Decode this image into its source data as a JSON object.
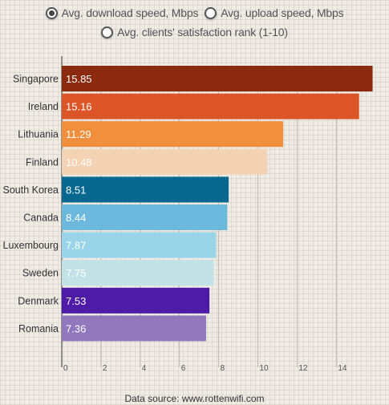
{
  "controls": {
    "radio_download": "Avg. download speed, Mbps",
    "radio_upload": "Avg. upload speed, Mbps",
    "radio_rank": "Avg. clients' satisfaction rank (1-10)",
    "selected": "download"
  },
  "source": "Data source: www.rottenwifi.com",
  "chart_data": {
    "type": "bar",
    "orientation": "horizontal",
    "categories": [
      "Singapore",
      "Ireland",
      "Lithuania",
      "Finland",
      "South Korea",
      "Canada",
      "Luxembourg",
      "Sweden",
      "Denmark",
      "Romania"
    ],
    "values": [
      15.85,
      15.16,
      11.29,
      10.48,
      8.51,
      8.44,
      7.87,
      7.75,
      7.53,
      7.36
    ],
    "value_labels": [
      "15.85",
      "15.16",
      "11.29",
      "10.48",
      "8.51",
      "8.44",
      "7.87",
      "7.75",
      "7.53",
      "7.36"
    ],
    "colors": [
      "#8b2a0f",
      "#dc5529",
      "#f28f3c",
      "#f4d3b4",
      "#086890",
      "#6db8dd",
      "#9ad4e8",
      "#c2e2e8",
      "#4e1aa8",
      "#9178bc"
    ],
    "label_colors": [
      "#ffffff",
      "#ffffff",
      "#ffffff",
      "#ffffff",
      "#ffffff",
      "#ffffff",
      "#ffffff",
      "#ffffff",
      "#ffffff",
      "#ffffff"
    ],
    "x_ticks": [
      "0",
      "2",
      "4",
      "6",
      "8",
      "10",
      "12",
      "14"
    ],
    "xlim": [
      0,
      16
    ],
    "grid": true
  }
}
